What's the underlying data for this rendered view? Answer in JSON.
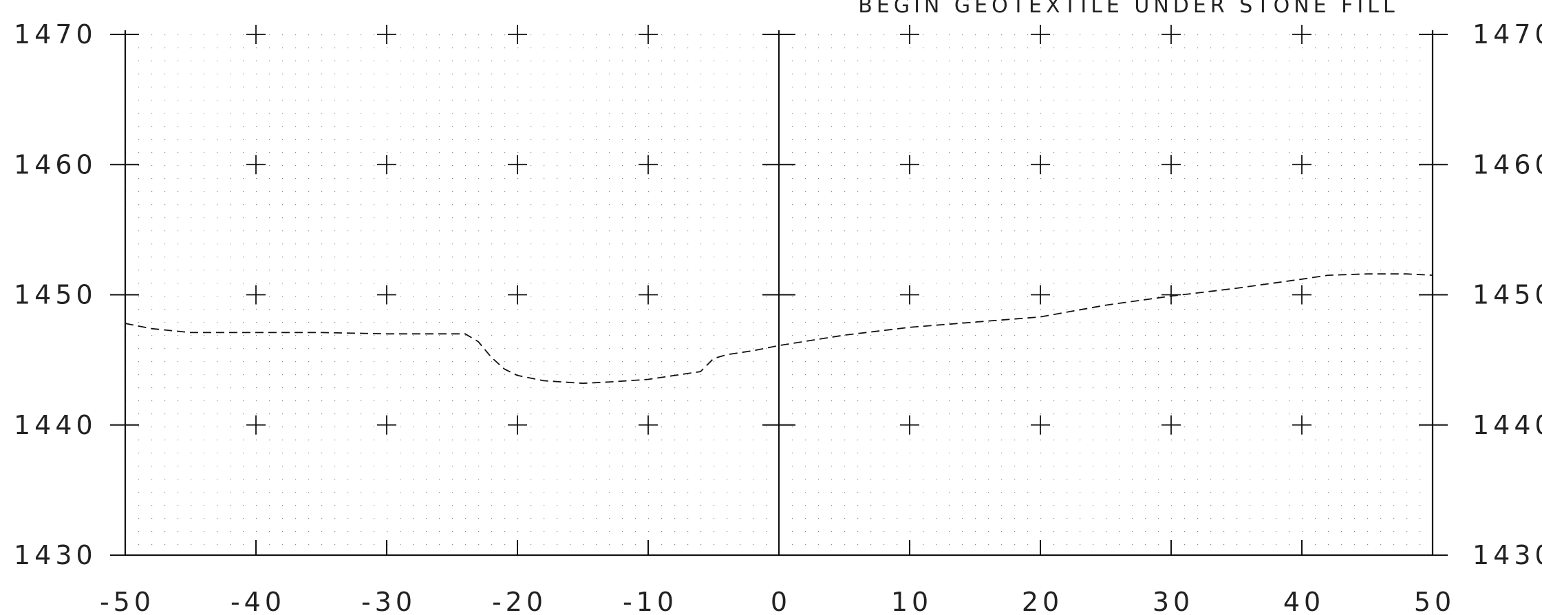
{
  "chart_data": {
    "type": "line",
    "annotation": "BEGIN GEOTEXTILE UNDER STONE FILL",
    "xlabel": "",
    "ylabel": "",
    "xlim": [
      -50,
      50
    ],
    "ylim": [
      1430,
      1470
    ],
    "x_ticks": [
      -50,
      -40,
      -30,
      -20,
      -10,
      0,
      10,
      20,
      30,
      40,
      50
    ],
    "x_tick_labels": [
      "-50",
      "-40",
      "-30",
      "-20",
      "-10",
      "0",
      "10",
      "20",
      "30",
      "40",
      "50"
    ],
    "y_ticks": [
      1430,
      1440,
      1450,
      1460,
      1470
    ],
    "y_tick_labels": [
      "1430",
      "1440",
      "1450",
      "1460",
      "1470"
    ],
    "grid": "dotted 1-unit grid with plus marks at 10-unit intersections",
    "series": [
      {
        "style": "dashed",
        "x": [
          -50,
          -48,
          -45,
          -40,
          -35,
          -30,
          -25,
          -24,
          -23,
          -22,
          -21,
          -20,
          -18,
          -15,
          -13,
          -10,
          -8,
          -6,
          -5.5,
          -5,
          -4,
          -2,
          0,
          5,
          10,
          15,
          20,
          25,
          30,
          35,
          40,
          42,
          45,
          48,
          50
        ],
        "y": [
          1447.8,
          1447.4,
          1447.1,
          1447.1,
          1447.1,
          1447.0,
          1447.0,
          1447.0,
          1446.4,
          1445.2,
          1444.3,
          1443.8,
          1443.4,
          1443.2,
          1443.3,
          1443.5,
          1443.8,
          1444.1,
          1444.6,
          1445.1,
          1445.4,
          1445.7,
          1446.1,
          1446.9,
          1447.5,
          1447.9,
          1448.3,
          1449.2,
          1449.9,
          1450.5,
          1451.2,
          1451.5,
          1451.6,
          1451.6,
          1451.5
        ]
      }
    ]
  }
}
